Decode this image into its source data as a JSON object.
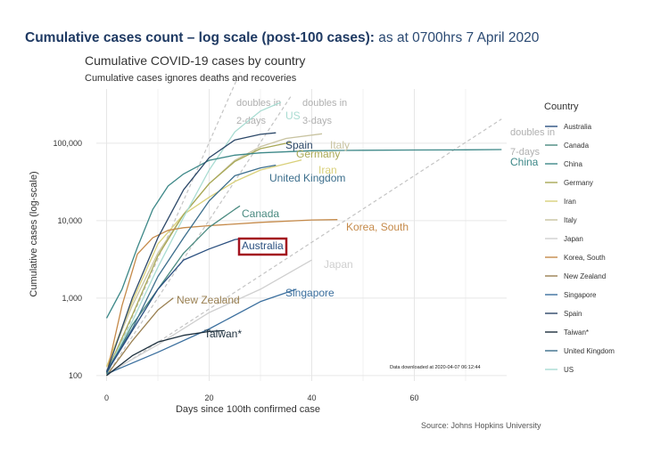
{
  "headline": {
    "bold": "Cumulative cases count – log scale (post-100 cases):",
    "rest": " as at 0700hrs 7 April 2020"
  },
  "source": "Source: Johns Hopkins University",
  "chart_data": {
    "type": "line",
    "title": "Cumulative COVID-19 cases by country",
    "subtitle": "Cumulative cases ignores deaths and recoveries",
    "xlabel": "Days since 100th confirmed case",
    "ylabel": "Cumulative cases (log-scale)",
    "xlim": [
      -2,
      78
    ],
    "ylim": [
      85,
      500000
    ],
    "yscale": "log",
    "x_ticks": [
      0,
      20,
      40,
      60
    ],
    "y_ticks": [
      100,
      1000,
      10000,
      100000
    ],
    "y_tick_labels": [
      "100",
      "1,000",
      "10,000",
      "100,000"
    ],
    "grid": true,
    "legend": {
      "title": "Country",
      "position": "right"
    },
    "annotation_note": "Data downloaded at 2020-04-07 06:12:44",
    "reference_lines": [
      {
        "label": "doubles in 2-days",
        "x": [
          0,
          26
        ],
        "y": [
          100,
          819200
        ]
      },
      {
        "label": "doubles in 3-days",
        "x": [
          0,
          36
        ],
        "y": [
          100,
          409600
        ]
      },
      {
        "label": "doubles in 7-days",
        "x": [
          0,
          77
        ],
        "y": [
          100,
          204800
        ]
      }
    ],
    "series": [
      {
        "name": "Australia",
        "color": "#2a4f7f",
        "label": "Australia",
        "highlight": true,
        "x": [
          0,
          5,
          10,
          15,
          20,
          25,
          26
        ],
        "y": [
          110,
          380,
          1300,
          3100,
          4300,
          5700,
          5800
        ]
      },
      {
        "name": "Canada",
        "color": "#4a8a80",
        "label": "Canada",
        "x": [
          0,
          5,
          10,
          15,
          20,
          25,
          26
        ],
        "y": [
          105,
          450,
          1300,
          3800,
          8200,
          14000,
          15500
        ]
      },
      {
        "name": "China",
        "color": "#3d8888",
        "label": "China",
        "x": [
          0,
          3,
          6,
          9,
          12,
          15,
          20,
          25,
          30,
          40,
          50,
          60,
          70,
          77
        ],
        "y": [
          550,
          1300,
          4500,
          14000,
          28000,
          40000,
          60000,
          70000,
          75000,
          80000,
          81000,
          81500,
          82000,
          82600
        ]
      },
      {
        "name": "Germany",
        "color": "#a8a855",
        "label": "Germany",
        "x": [
          0,
          5,
          10,
          15,
          20,
          25,
          30,
          36
        ],
        "y": [
          110,
          600,
          3500,
          12000,
          30000,
          58000,
          85000,
          103000
        ]
      },
      {
        "name": "Iran",
        "color": "#d9d07a",
        "label": "Iran",
        "x": [
          0,
          5,
          10,
          15,
          20,
          25,
          30,
          38
        ],
        "y": [
          130,
          900,
          5000,
          12000,
          20000,
          32000,
          45000,
          60500
        ]
      },
      {
        "name": "Italy",
        "color": "#c8c3a0",
        "label": "Italy",
        "x": [
          0,
          5,
          10,
          15,
          20,
          25,
          30,
          35,
          42
        ],
        "y": [
          130,
          800,
          3800,
          12000,
          30000,
          60000,
          90000,
          115000,
          132000
        ]
      },
      {
        "name": "Japan",
        "color": "#cfcfcf",
        "label": "Japan",
        "x": [
          0,
          10,
          20,
          30,
          40
        ],
        "y": [
          105,
          250,
          650,
          1300,
          3100
        ]
      },
      {
        "name": "Korea, South",
        "color": "#c58a4a",
        "label": "Korea, South",
        "x": [
          0,
          3,
          6,
          9,
          12,
          15,
          20,
          30,
          40,
          45
        ],
        "y": [
          105,
          800,
          3700,
          6000,
          7500,
          8100,
          8600,
          9500,
          10200,
          10300
        ]
      },
      {
        "name": "New Zealand",
        "color": "#9a8052",
        "label": "New Zealand",
        "x": [
          0,
          5,
          10,
          13
        ],
        "y": [
          100,
          280,
          700,
          1000
        ]
      },
      {
        "name": "Singapore",
        "color": "#3b6f9e",
        "label": "Singapore",
        "x": [
          0,
          10,
          20,
          30,
          37
        ],
        "y": [
          105,
          200,
          400,
          900,
          1300
        ]
      },
      {
        "name": "Spain",
        "color": "#2c4868",
        "label": "Spain",
        "x": [
          0,
          5,
          10,
          15,
          20,
          25,
          30,
          33
        ],
        "y": [
          110,
          1000,
          6000,
          25000,
          65000,
          110000,
          130000,
          136000
        ]
      },
      {
        "name": "Taiwan*",
        "color": "#1c2f3d",
        "label": "Taiwan*",
        "x": [
          0,
          5,
          10,
          15,
          20,
          23
        ],
        "y": [
          100,
          180,
          270,
          330,
          370,
          380
        ]
      },
      {
        "name": "United Kingdom",
        "color": "#3c6e8c",
        "label": "United Kingdom",
        "x": [
          0,
          5,
          10,
          15,
          20,
          25,
          30,
          33
        ],
        "y": [
          115,
          400,
          1900,
          6000,
          18000,
          38000,
          48000,
          52000
        ]
      },
      {
        "name": "US",
        "color": "#a9dcd2",
        "label": "US",
        "x": [
          0,
          5,
          10,
          15,
          20,
          25,
          30,
          34
        ],
        "y": [
          110,
          500,
          2500,
          11000,
          45000,
          140000,
          260000,
          337000
        ]
      }
    ]
  }
}
